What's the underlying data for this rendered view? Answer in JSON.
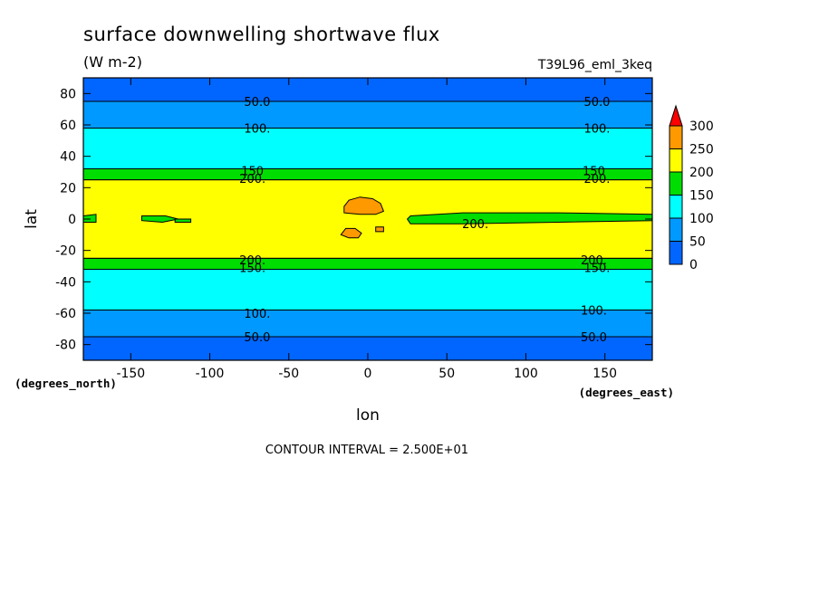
{
  "chart_data": {
    "type": "filled-contour",
    "title": "surface downwelling shortwave flux",
    "units": "(W m-2)",
    "dataset": "T39L96_eml_3keq",
    "xlabel": "lon",
    "ylabel": "lat",
    "x_units": "(degrees_east)",
    "y_units": "(degrees_north)",
    "xlim": [
      -180,
      180
    ],
    "ylim": [
      -90,
      90
    ],
    "x_ticks": [
      -150,
      -100,
      -50,
      0,
      50,
      100,
      150
    ],
    "y_ticks": [
      80,
      60,
      40,
      20,
      0,
      -20,
      -40,
      -60,
      -80
    ],
    "x_tick_labels": [
      "-150",
      "-100",
      "-50",
      "0",
      "50",
      "100",
      "150"
    ],
    "y_tick_labels": [
      "80",
      "60",
      "40",
      "20",
      "0",
      "-20",
      "-40",
      "-60",
      "-80"
    ],
    "contour_interval": "CONTOUR INTERVAL = 2.500E+01",
    "colorbar": {
      "levels": [
        0,
        50,
        100,
        150,
        200,
        250,
        300
      ],
      "tick_labels": [
        "0",
        "50",
        "100",
        "150",
        "200",
        "250",
        "300"
      ],
      "colors": [
        "#0066ff",
        "#0099ff",
        "#00ffff",
        "#00dd00",
        "#ffff00",
        "#ff9900",
        "#ff0000"
      ]
    },
    "bands": [
      {
        "lat_from": 75,
        "lat_to": 90,
        "level": 0
      },
      {
        "lat_from": 58,
        "lat_to": 75,
        "level": 50
      },
      {
        "lat_from": 32,
        "lat_to": 58,
        "level": 100
      },
      {
        "lat_from": 25,
        "lat_to": 32,
        "level": 150
      },
      {
        "lat_from": -25,
        "lat_to": 25,
        "level": 200
      },
      {
        "lat_from": -32,
        "lat_to": -25,
        "level": 150
      },
      {
        "lat_from": -58,
        "lat_to": -32,
        "level": 100
      },
      {
        "lat_from": -75,
        "lat_to": -58,
        "level": 50
      },
      {
        "lat_from": -90,
        "lat_to": -75,
        "level": 0
      }
    ],
    "patches": [
      {
        "level": 250,
        "points": [
          [
            -15,
            8
          ],
          [
            -12,
            12
          ],
          [
            -5,
            14
          ],
          [
            3,
            13
          ],
          [
            8,
            10
          ],
          [
            10,
            5
          ],
          [
            5,
            3
          ],
          [
            -5,
            3
          ],
          [
            -15,
            4
          ]
        ]
      },
      {
        "level": 250,
        "points": [
          [
            -17,
            -10
          ],
          [
            -14,
            -6
          ],
          [
            -8,
            -6
          ],
          [
            -4,
            -9
          ],
          [
            -6,
            -12
          ],
          [
            -12,
            -12
          ]
        ]
      },
      {
        "level": 250,
        "points": [
          [
            5,
            -5
          ],
          [
            10,
            -5
          ],
          [
            10,
            -8
          ],
          [
            5,
            -8
          ]
        ]
      },
      {
        "level": 150,
        "points": [
          [
            -180,
            2
          ],
          [
            -172,
            3
          ],
          [
            -172,
            -2
          ],
          [
            -180,
            -2
          ]
        ]
      },
      {
        "level": 150,
        "points": [
          [
            -143,
            2
          ],
          [
            -128,
            2
          ],
          [
            -120,
            0
          ],
          [
            -130,
            -2
          ],
          [
            -143,
            -1
          ]
        ]
      },
      {
        "level": 150,
        "points": [
          [
            -122,
            0
          ],
          [
            -112,
            0
          ],
          [
            -112,
            -2
          ],
          [
            -122,
            -2
          ]
        ]
      },
      {
        "level": 150,
        "points": [
          [
            27,
            2
          ],
          [
            60,
            4
          ],
          [
            120,
            4
          ],
          [
            180,
            3
          ],
          [
            180,
            -1
          ],
          [
            120,
            -2
          ],
          [
            60,
            -3
          ],
          [
            27,
            -3
          ],
          [
            25,
            0
          ]
        ]
      }
    ],
    "contour_labels": [
      {
        "text": "50.0",
        "lon": -70,
        "lat": 75
      },
      {
        "text": "50.0",
        "lon": 145,
        "lat": 75
      },
      {
        "text": "100.",
        "lon": -70,
        "lat": 58
      },
      {
        "text": "100.",
        "lon": 145,
        "lat": 58
      },
      {
        "text": "150",
        "lon": -73,
        "lat": 31
      },
      {
        "text": "200.",
        "lon": -73,
        "lat": 26
      },
      {
        "text": "150",
        "lon": 143,
        "lat": 31
      },
      {
        "text": "200.",
        "lon": 145,
        "lat": 26
      },
      {
        "text": "200.",
        "lon": 68,
        "lat": -3
      },
      {
        "text": "200.",
        "lon": -73,
        "lat": -26
      },
      {
        "text": "150.",
        "lon": -73,
        "lat": -31
      },
      {
        "text": "200.",
        "lon": 143,
        "lat": -26
      },
      {
        "text": "150.",
        "lon": 145,
        "lat": -31
      },
      {
        "text": "100.",
        "lon": -70,
        "lat": -60
      },
      {
        "text": "100.",
        "lon": 143,
        "lat": -58
      },
      {
        "text": "50.0",
        "lon": -70,
        "lat": -75
      },
      {
        "text": "50.0",
        "lon": 143,
        "lat": -75
      }
    ]
  }
}
